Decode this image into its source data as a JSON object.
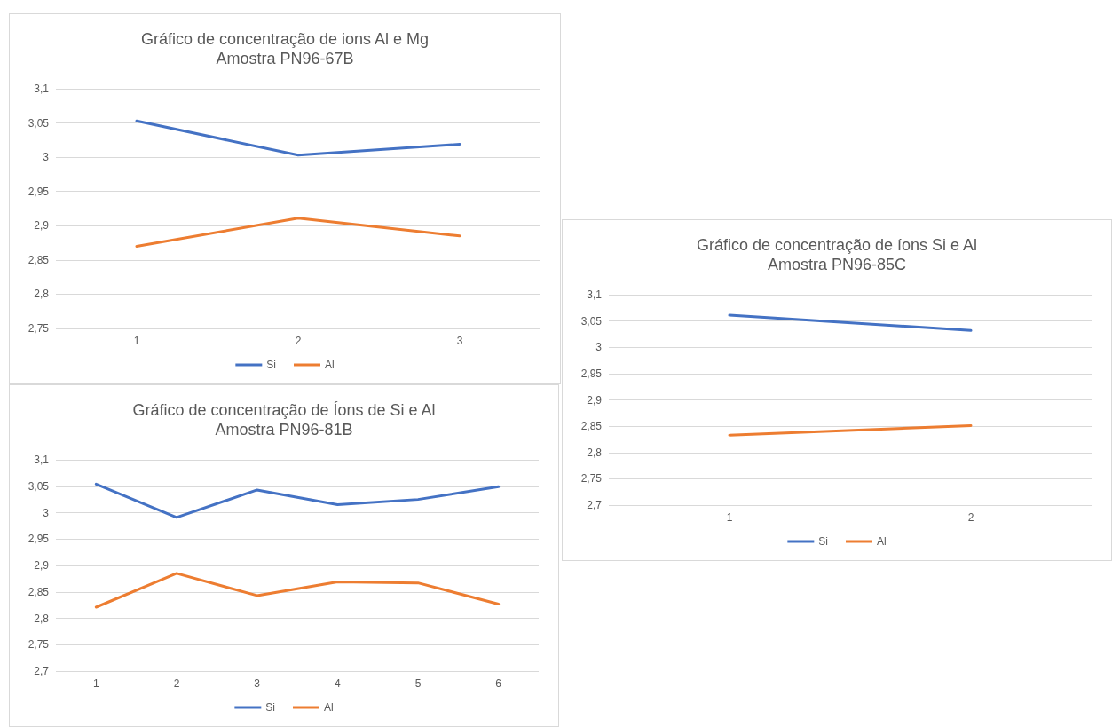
{
  "chart_data": [
    {
      "type": "line",
      "title": "Gráfico de concentração de ions Al e Mg",
      "subtitle": "Amostra PN96-67B",
      "categories": [
        "1",
        "2",
        "3"
      ],
      "series": [
        {
          "name": "Si",
          "color": "#4472c4",
          "values": [
            3.053,
            3.003,
            3.019
          ]
        },
        {
          "name": "Al",
          "color": "#ed7d31",
          "values": [
            2.87,
            2.911,
            2.885
          ]
        }
      ],
      "ylim": [
        2.75,
        3.1
      ],
      "yticks": [
        {
          "value": 2.75,
          "label": "2,75"
        },
        {
          "value": 2.8,
          "label": "2,8"
        },
        {
          "value": 2.85,
          "label": "2,85"
        },
        {
          "value": 2.9,
          "label": "2,9"
        },
        {
          "value": 2.95,
          "label": "2,95"
        },
        {
          "value": 3,
          "label": "3"
        },
        {
          "value": 3.05,
          "label": "3,05"
        },
        {
          "value": 3.1,
          "label": "3,1"
        }
      ],
      "grid": "y",
      "legend": "bottom",
      "marker": "none",
      "line_style": "solid"
    },
    {
      "type": "line",
      "title": "Gráfico de concentração de íons Si e Al",
      "subtitle": "Amostra PN96-85C",
      "categories": [
        "1",
        "2"
      ],
      "series": [
        {
          "name": "Si",
          "color": "#4472c4",
          "values": [
            3.061,
            3.032
          ]
        },
        {
          "name": "Al",
          "color": "#ed7d31",
          "values": [
            2.833,
            2.851
          ]
        }
      ],
      "ylim": [
        2.7,
        3.1
      ],
      "yticks": [
        {
          "value": 2.7,
          "label": "2,7"
        },
        {
          "value": 2.75,
          "label": "2,75"
        },
        {
          "value": 2.8,
          "label": "2,8"
        },
        {
          "value": 2.85,
          "label": "2,85"
        },
        {
          "value": 2.9,
          "label": "2,9"
        },
        {
          "value": 2.95,
          "label": "2,95"
        },
        {
          "value": 3,
          "label": "3"
        },
        {
          "value": 3.05,
          "label": "3,05"
        },
        {
          "value": 3.1,
          "label": "3,1"
        }
      ],
      "grid": "y",
      "legend": "bottom",
      "marker": "none",
      "line_style": "solid"
    },
    {
      "type": "line",
      "title": "Gráfico de concentração de Íons de Si e Al",
      "subtitle": "Amostra PN96-81B",
      "categories": [
        "1",
        "2",
        "3",
        "4",
        "5",
        "6"
      ],
      "series": [
        {
          "name": "Si",
          "color": "#4472c4",
          "values": [
            3.054,
            2.991,
            3.043,
            3.015,
            3.025,
            3.049
          ]
        },
        {
          "name": "Al",
          "color": "#ed7d31",
          "values": [
            2.821,
            2.885,
            2.843,
            2.869,
            2.867,
            2.827
          ]
        }
      ],
      "ylim": [
        2.7,
        3.1
      ],
      "yticks": [
        {
          "value": 2.7,
          "label": "2,7"
        },
        {
          "value": 2.75,
          "label": "2,75"
        },
        {
          "value": 2.8,
          "label": "2,8"
        },
        {
          "value": 2.85,
          "label": "2,85"
        },
        {
          "value": 2.9,
          "label": "2,9"
        },
        {
          "value": 2.95,
          "label": "2,95"
        },
        {
          "value": 3,
          "label": "3"
        },
        {
          "value": 3.05,
          "label": "3,05"
        },
        {
          "value": 3.1,
          "label": "3,1"
        }
      ],
      "grid": "y",
      "legend": "bottom",
      "marker": "none",
      "line_style": "solid"
    }
  ]
}
